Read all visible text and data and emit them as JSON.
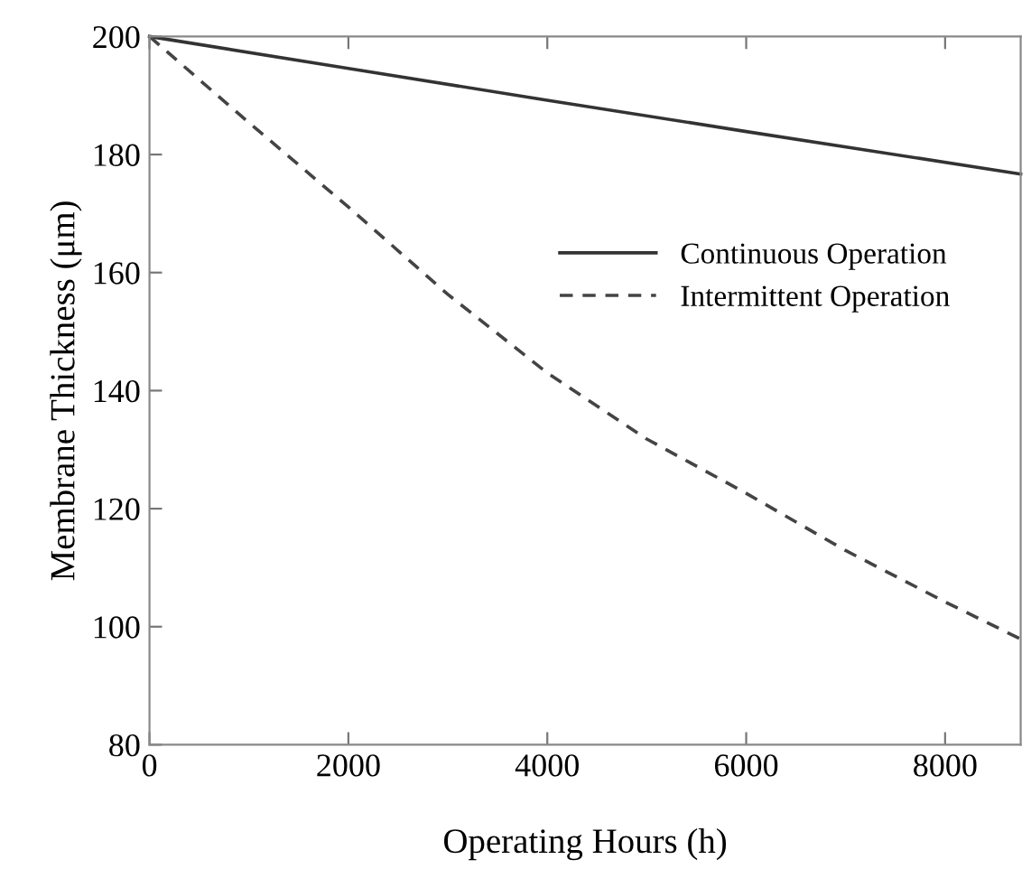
{
  "chart_data": {
    "type": "line",
    "xlabel": "Operating Hours (h)",
    "ylabel": "Membrane Thickness (μm)",
    "xlim": [
      0,
      8760
    ],
    "ylim": [
      80,
      200
    ],
    "xticks": [
      0,
      2000,
      4000,
      6000,
      8000
    ],
    "yticks": [
      80,
      100,
      120,
      140,
      160,
      180,
      200
    ],
    "grid": false,
    "legend": "right",
    "marker": "none",
    "series": [
      {
        "name": "Continuous Operation",
        "color": "#333333",
        "line_style": "solid",
        "x": [
          0,
          2000,
          4000,
          6000,
          8760
        ],
        "values": [
          200,
          194.6,
          189.2,
          183.9,
          176.7
        ]
      },
      {
        "name": "Intermittent Operation",
        "color": "#444444",
        "line_style": "dashed",
        "x": [
          0,
          1000,
          2000,
          3000,
          4000,
          5000,
          6000,
          7000,
          8000,
          8760
        ],
        "values": [
          200,
          185.4,
          171.1,
          156.3,
          143.0,
          131.8,
          122.6,
          112.9,
          104.2,
          97.9
        ]
      }
    ]
  }
}
